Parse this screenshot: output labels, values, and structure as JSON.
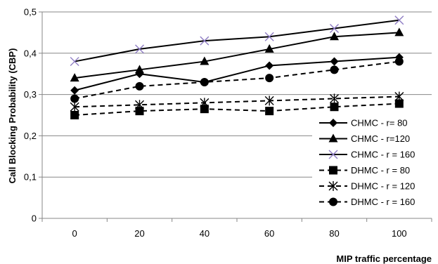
{
  "chart_data": {
    "type": "line",
    "title": "",
    "xlabel": "MIP traffic percentage",
    "ylabel": "Call Blocking Probability (CBP)",
    "x": [
      0,
      20,
      40,
      60,
      80,
      100
    ],
    "x_tick_labels": [
      "0",
      "20",
      "40",
      "60",
      "80",
      "100"
    ],
    "ylim": [
      0,
      0.5
    ],
    "y_tick_labels": [
      "0",
      "0,1",
      "0,2",
      "0,3",
      "0,4",
      "0,5"
    ],
    "y_ticks": [
      0,
      0.1,
      0.2,
      0.3,
      0.4,
      0.5
    ],
    "grid": "horizontal",
    "legend_position": "right",
    "series": [
      {
        "name": "CHMC - r= 80",
        "values": [
          0.31,
          0.35,
          0.33,
          0.37,
          0.38,
          0.39
        ],
        "marker": "diamond",
        "line": "solid",
        "color": "#000000"
      },
      {
        "name": "CHMC - r=120",
        "values": [
          0.34,
          0.36,
          0.38,
          0.41,
          0.44,
          0.45
        ],
        "marker": "triangle",
        "line": "solid",
        "color": "#000000"
      },
      {
        "name": "CHMC - r = 160",
        "values": [
          0.38,
          0.41,
          0.43,
          0.44,
          0.46,
          0.48
        ],
        "marker": "cross",
        "line": "solid",
        "color": "#000000",
        "marker_color": "#8e7cc3"
      },
      {
        "name": "DHMC - r = 80",
        "values": [
          0.25,
          0.26,
          0.265,
          0.26,
          0.27,
          0.278
        ],
        "marker": "square",
        "line": "dashed",
        "color": "#000000"
      },
      {
        "name": "DHMC - r = 120",
        "values": [
          0.27,
          0.275,
          0.28,
          0.285,
          0.29,
          0.295
        ],
        "marker": "asterisk",
        "line": "dashed",
        "color": "#000000"
      },
      {
        "name": "DHMC - r = 160",
        "values": [
          0.29,
          0.32,
          0.33,
          0.34,
          0.36,
          0.38
        ],
        "marker": "circle",
        "line": "dashed",
        "color": "#000000"
      }
    ]
  }
}
